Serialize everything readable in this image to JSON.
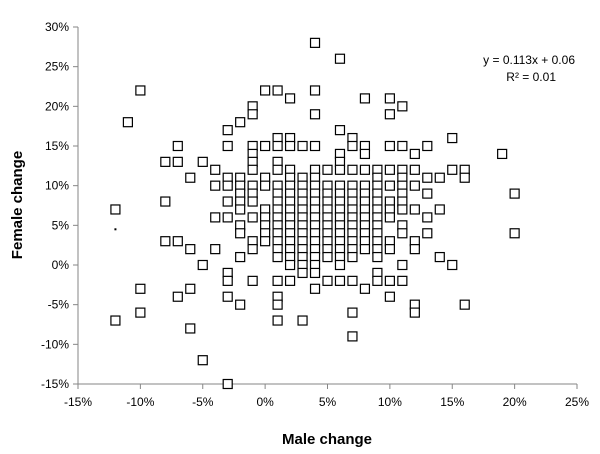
{
  "chart_data": {
    "type": "scatter",
    "title": "",
    "xlabel": "Male change",
    "ylabel": "Female change",
    "xlim": [
      -15,
      25
    ],
    "ylim": [
      -15,
      30
    ],
    "x_ticks": [
      -15,
      -10,
      -5,
      0,
      5,
      10,
      15,
      20,
      25
    ],
    "y_ticks": [
      -15,
      -10,
      -5,
      0,
      5,
      10,
      15,
      20,
      25,
      30
    ],
    "x_tick_labels": [
      "-15%",
      "-10%",
      "-5%",
      "0%",
      "5%",
      "10%",
      "15%",
      "20%",
      "25%"
    ],
    "y_tick_labels": [
      "-15%",
      "-10%",
      "-5%",
      "0%",
      "5%",
      "10%",
      "15%",
      "20%",
      "25%",
      "30%"
    ],
    "grid": false,
    "marker": "hollow-square",
    "annotations": [
      "y = 0.113x + 0.06",
      "R² = 0.01"
    ],
    "trendline": {
      "slope": 0.113,
      "intercept": 0.06,
      "r2": 0.01
    },
    "stray_point": [
      -12,
      4.5
    ],
    "columns": {
      "-12": [
        7,
        -7
      ],
      "-11": [
        18
      ],
      "-10": [
        22,
        -3,
        -6
      ],
      "-8": [
        13,
        8,
        3
      ],
      "-7": [
        15,
        13,
        3,
        -4
      ],
      "-6": [
        11,
        2,
        -3,
        -8
      ],
      "-5": [
        13,
        0,
        -12
      ],
      "-4": [
        12,
        10,
        6,
        2
      ],
      "-3": [
        17,
        15,
        11,
        10,
        8,
        6,
        -1,
        -2,
        -4,
        -15
      ],
      "-2": [
        18,
        11,
        10,
        9,
        8,
        7,
        5,
        4,
        1,
        -5
      ],
      "-1": [
        20,
        19,
        15,
        14,
        13,
        12,
        10,
        9,
        8,
        6,
        3,
        2,
        -2
      ],
      "0": [
        22,
        15,
        11,
        10,
        7,
        6,
        5,
        4,
        3
      ],
      "1": [
        22,
        16,
        15,
        13,
        12,
        10,
        9,
        8,
        7,
        6,
        5,
        4,
        3,
        2,
        1,
        -2,
        -4,
        -5,
        -7
      ],
      "2": [
        21,
        16,
        15,
        12,
        11,
        10,
        9,
        8,
        7,
        6,
        5,
        4,
        3,
        2,
        1,
        0,
        -2
      ],
      "3": [
        15,
        11,
        10,
        9,
        8,
        7,
        6,
        5,
        4,
        3,
        2,
        1,
        0,
        -1,
        -7
      ],
      "4": [
        28,
        22,
        19,
        15,
        12,
        11,
        10,
        9,
        8,
        7,
        6,
        5,
        4,
        3,
        2,
        1,
        0,
        -1,
        -3
      ],
      "5": [
        12,
        10,
        9,
        8,
        7,
        6,
        5,
        4,
        3,
        2,
        1,
        -2
      ],
      "6": [
        26,
        17,
        14,
        13,
        12,
        10,
        9,
        8,
        7,
        6,
        5,
        4,
        3,
        2,
        1,
        0,
        -2
      ],
      "7": [
        16,
        15,
        12,
        10,
        9,
        8,
        7,
        6,
        5,
        4,
        3,
        2,
        1,
        -2,
        -6,
        -9
      ],
      "8": [
        21,
        15,
        14,
        12,
        10,
        9,
        8,
        7,
        6,
        5,
        4,
        3,
        2,
        -3
      ],
      "9": [
        12,
        11,
        10,
        9,
        8,
        7,
        6,
        5,
        4,
        3,
        2,
        1,
        -1,
        -2
      ],
      "10": [
        21,
        19,
        15,
        12,
        10,
        8,
        7,
        6,
        3,
        2,
        -2,
        -4
      ],
      "11": [
        20,
        15,
        12,
        11,
        10,
        9,
        8,
        7,
        5,
        4,
        0,
        -2
      ],
      "12": [
        14,
        12,
        10,
        7,
        3,
        2,
        -5,
        -6
      ],
      "13": [
        15,
        11,
        9,
        6,
        4
      ],
      "14": [
        11,
        7,
        1
      ],
      "15": [
        16,
        12,
        0
      ],
      "16": [
        12,
        11,
        -5
      ],
      "19": [
        14
      ],
      "20": [
        9,
        4
      ]
    }
  }
}
